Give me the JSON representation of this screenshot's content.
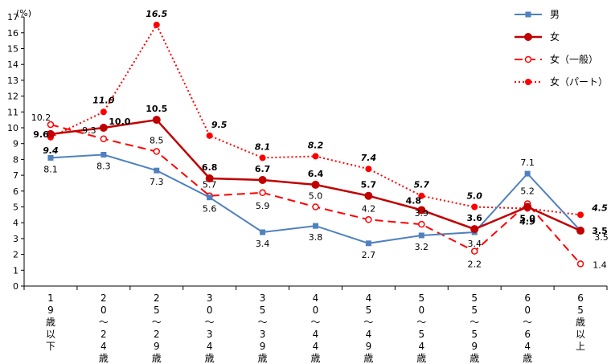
{
  "chart_data": {
    "type": "line",
    "ylabel": "(%)",
    "ylim": [
      0,
      17
    ],
    "yticks": [
      "0",
      "1",
      "2",
      "3",
      "4",
      "5",
      "6",
      "7",
      "8",
      "9",
      "10",
      "11",
      "12",
      "13",
      "14",
      "15",
      "16",
      "17"
    ],
    "categories": [
      [
        "1",
        "9",
        "歳",
        "以",
        "下"
      ],
      [
        "2",
        "0",
        "～",
        "2",
        "4",
        "歳"
      ],
      [
        "2",
        "5",
        "～",
        "2",
        "9",
        "歳"
      ],
      [
        "3",
        "0",
        "～",
        "3",
        "4",
        "歳"
      ],
      [
        "3",
        "5",
        "～",
        "3",
        "9",
        "歳"
      ],
      [
        "4",
        "0",
        "～",
        "4",
        "4",
        "歳"
      ],
      [
        "4",
        "5",
        "～",
        "4",
        "9",
        "歳"
      ],
      [
        "5",
        "0",
        "～",
        "5",
        "4",
        "歳"
      ],
      [
        "5",
        "5",
        "～",
        "5",
        "9",
        "歳"
      ],
      [
        "6",
        "0",
        "～",
        "6",
        "4",
        "歳"
      ],
      [
        "6",
        "5",
        "歳",
        "以",
        "上"
      ]
    ],
    "series": [
      {
        "name": "男",
        "color": "#4f81bd",
        "values": [
          8.1,
          8.3,
          7.3,
          5.6,
          3.4,
          3.8,
          2.7,
          3.2,
          3.4,
          7.1,
          3.5
        ],
        "labels": [
          "8.1",
          "8.3",
          "7.3",
          "5.6",
          "3.4",
          "3.8",
          "2.7",
          "3.2",
          "3.4",
          "7.1",
          "3.5"
        ]
      },
      {
        "name": "女",
        "color": "#c00000",
        "values": [
          9.6,
          10.0,
          10.5,
          6.8,
          6.7,
          6.4,
          5.7,
          4.8,
          3.6,
          5.0,
          3.5
        ],
        "labels": [
          "9.6",
          "10.0",
          "10.5",
          "6.8",
          "6.7",
          "6.4",
          "5.7",
          "4.8",
          "3.6",
          "5.0",
          "3.5"
        ]
      },
      {
        "name": "女（一般）",
        "color": "#ff0000",
        "values": [
          10.2,
          9.3,
          8.5,
          5.7,
          5.9,
          5.0,
          4.2,
          3.9,
          2.2,
          5.2,
          1.4
        ],
        "labels": [
          "10.2",
          "9.3",
          "8.5",
          "5.7",
          "5.9",
          "5.0",
          "4.2",
          "3.9",
          "2.2",
          "5.2",
          "1.4"
        ]
      },
      {
        "name": "女（パート）",
        "color": "#ff0000",
        "values": [
          9.4,
          11.0,
          16.5,
          9.5,
          8.1,
          8.2,
          7.4,
          5.7,
          5.0,
          4.9,
          4.5
        ],
        "labels": [
          "9.4",
          "11.0",
          "16.5",
          "9.5",
          "8.1",
          "8.2",
          "7.4",
          "5.7",
          "5.0",
          "4.9",
          "4.5"
        ]
      }
    ]
  }
}
